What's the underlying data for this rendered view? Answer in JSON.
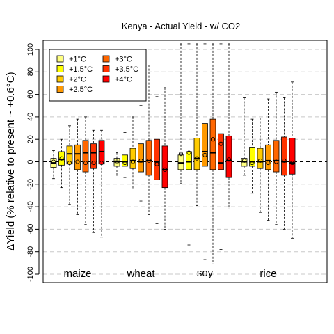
{
  "chart_data": {
    "type": "boxplot",
    "title": "Kenya - Actual Yield - w/ CO2",
    "ylabel": "ΔYield (% relative to present ~ +0.6°C)",
    "ylim": [
      -105,
      105
    ],
    "yticks": [
      -100,
      -80,
      -60,
      -40,
      -20,
      0,
      20,
      40,
      60,
      80,
      100
    ],
    "grid": "horizontal dashed",
    "legend_position": "top-left",
    "legend": [
      {
        "label": "+1°C",
        "color": "#FFFF80"
      },
      {
        "label": "+1.5°C",
        "color": "#FFFF00"
      },
      {
        "label": "+2°C",
        "color": "#FFCC00"
      },
      {
        "label": "+2.5°C",
        "color": "#FF9900"
      },
      {
        "label": "+3°C",
        "color": "#FF6600"
      },
      {
        "label": "+3.5°C",
        "color": "#FF3300"
      },
      {
        "label": "+4°C",
        "color": "#FF0000"
      }
    ],
    "crops": [
      {
        "name": "maize",
        "boxes": [
          {
            "lo": -15,
            "q1": -5,
            "med": -1,
            "q3": 3,
            "hi": 10,
            "mean": 0
          },
          {
            "lo": -23,
            "q1": -3,
            "med": 2,
            "q3": 9,
            "hi": 20,
            "mean": 3
          },
          {
            "lo": -38,
            "q1": -2,
            "med": 7,
            "q3": 14,
            "hi": 32,
            "mean": -1
          },
          {
            "lo": -47,
            "q1": -7,
            "med": 7,
            "q3": 15,
            "hi": 38,
            "mean": 0
          },
          {
            "lo": -56,
            "q1": -9,
            "med": 8,
            "q3": 19,
            "hi": 40,
            "mean": -1
          },
          {
            "lo": -63,
            "q1": -6,
            "med": 8,
            "q3": 16,
            "hi": 28,
            "mean": -1
          },
          {
            "lo": -67,
            "q1": -2,
            "med": 9,
            "q3": 19,
            "hi": 28,
            "mean": -1
          }
        ]
      },
      {
        "name": "wheat",
        "boxes": [
          {
            "lo": -12,
            "q1": -4,
            "med": 0,
            "q3": 3,
            "hi": 8,
            "mean": 0
          },
          {
            "lo": -14,
            "q1": -4,
            "med": 0,
            "q3": 6,
            "hi": 26,
            "mean": -1
          },
          {
            "lo": -24,
            "q1": -6,
            "med": 1,
            "q3": 12,
            "hi": 40,
            "mean": 0
          },
          {
            "lo": -35,
            "q1": -9,
            "med": 0,
            "q3": 16,
            "hi": 50,
            "mean": 1
          },
          {
            "lo": -47,
            "q1": -12,
            "med": 1,
            "q3": 19,
            "hi": 86,
            "mean": 1
          },
          {
            "lo": -55,
            "q1": -16,
            "med": 0,
            "q3": 20,
            "hi": 58,
            "mean": -2
          },
          {
            "lo": -60,
            "q1": -23,
            "med": -7,
            "q3": 14,
            "hi": 66,
            "mean": -7
          }
        ]
      },
      {
        "name": "soy",
        "boxes": [
          {
            "lo": -19,
            "q1": -7,
            "med": -1,
            "q3": 6,
            "hi": 105,
            "mean": 7
          },
          {
            "lo": -74,
            "q1": -7,
            "med": 0,
            "q3": 9,
            "hi": 105,
            "mean": 8
          },
          {
            "lo": -39,
            "q1": -7,
            "med": 3,
            "q3": 21,
            "hi": 105,
            "mean": 3
          },
          {
            "lo": -87,
            "q1": -4,
            "med": 9,
            "q3": 34,
            "hi": 105,
            "mean": 6
          },
          {
            "lo": -91,
            "q1": -7,
            "med": 8,
            "q3": 38,
            "hi": 105,
            "mean": 20
          },
          {
            "lo": -78,
            "q1": -7,
            "med": -1,
            "q3": 25,
            "hi": 105,
            "mean": 16
          },
          {
            "lo": -42,
            "q1": -14,
            "med": 1,
            "q3": 23,
            "hi": 105,
            "mean": 2
          }
        ]
      },
      {
        "name": "rice",
        "boxes": [
          {
            "lo": -12,
            "q1": -4,
            "med": 0,
            "q3": 3,
            "hi": 57,
            "mean": 1
          },
          {
            "lo": -28,
            "q1": -4,
            "med": 0,
            "q3": 13,
            "hi": 38,
            "mean": -1
          },
          {
            "lo": -45,
            "q1": -6,
            "med": 0,
            "q3": 12,
            "hi": 39,
            "mean": 1
          },
          {
            "lo": -52,
            "q1": -7,
            "med": 1,
            "q3": 15,
            "hi": 56,
            "mean": -1
          },
          {
            "lo": -56,
            "q1": -9,
            "med": 1,
            "q3": 19,
            "hi": 62,
            "mean": 0
          },
          {
            "lo": -60,
            "q1": -12,
            "med": 0,
            "q3": 22,
            "hi": 57,
            "mean": 1
          },
          {
            "lo": -68,
            "q1": -11,
            "med": -1,
            "q3": 21,
            "hi": 71,
            "mean": -1
          }
        ]
      }
    ]
  }
}
